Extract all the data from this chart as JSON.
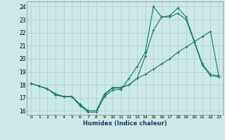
{
  "xlabel": "Humidex (Indice chaleur)",
  "bg_color": "#cce9e9",
  "grid_color": "#aacccc",
  "line_color": "#1a7a6a",
  "xlim": [
    -0.5,
    23.5
  ],
  "ylim": [
    15.7,
    24.4
  ],
  "yticks": [
    16,
    17,
    18,
    19,
    20,
    21,
    22,
    23,
    24
  ],
  "xticks": [
    0,
    1,
    2,
    3,
    4,
    5,
    6,
    7,
    8,
    9,
    10,
    11,
    12,
    13,
    14,
    15,
    16,
    17,
    18,
    19,
    20,
    21,
    22,
    23
  ],
  "line1": [
    18.1,
    17.9,
    17.7,
    17.2,
    17.1,
    17.1,
    16.4,
    15.9,
    15.9,
    17.1,
    17.6,
    17.65,
    18.5,
    19.4,
    20.5,
    24.0,
    23.2,
    23.2,
    23.5,
    23.0,
    21.3,
    19.5,
    18.7,
    18.6
  ],
  "line2": [
    18.1,
    17.9,
    17.7,
    17.3,
    17.1,
    17.1,
    16.5,
    16.0,
    16.0,
    17.25,
    17.75,
    17.75,
    18.0,
    18.5,
    20.2,
    22.2,
    23.2,
    23.3,
    23.9,
    23.2,
    21.4,
    19.6,
    18.8,
    18.7
  ],
  "line3": [
    18.1,
    17.9,
    17.7,
    17.3,
    17.1,
    17.1,
    16.5,
    16.0,
    16.0,
    17.3,
    17.8,
    17.8,
    18.0,
    18.5,
    18.8,
    19.2,
    19.6,
    20.0,
    20.5,
    20.9,
    21.3,
    21.7,
    22.1,
    18.7
  ]
}
